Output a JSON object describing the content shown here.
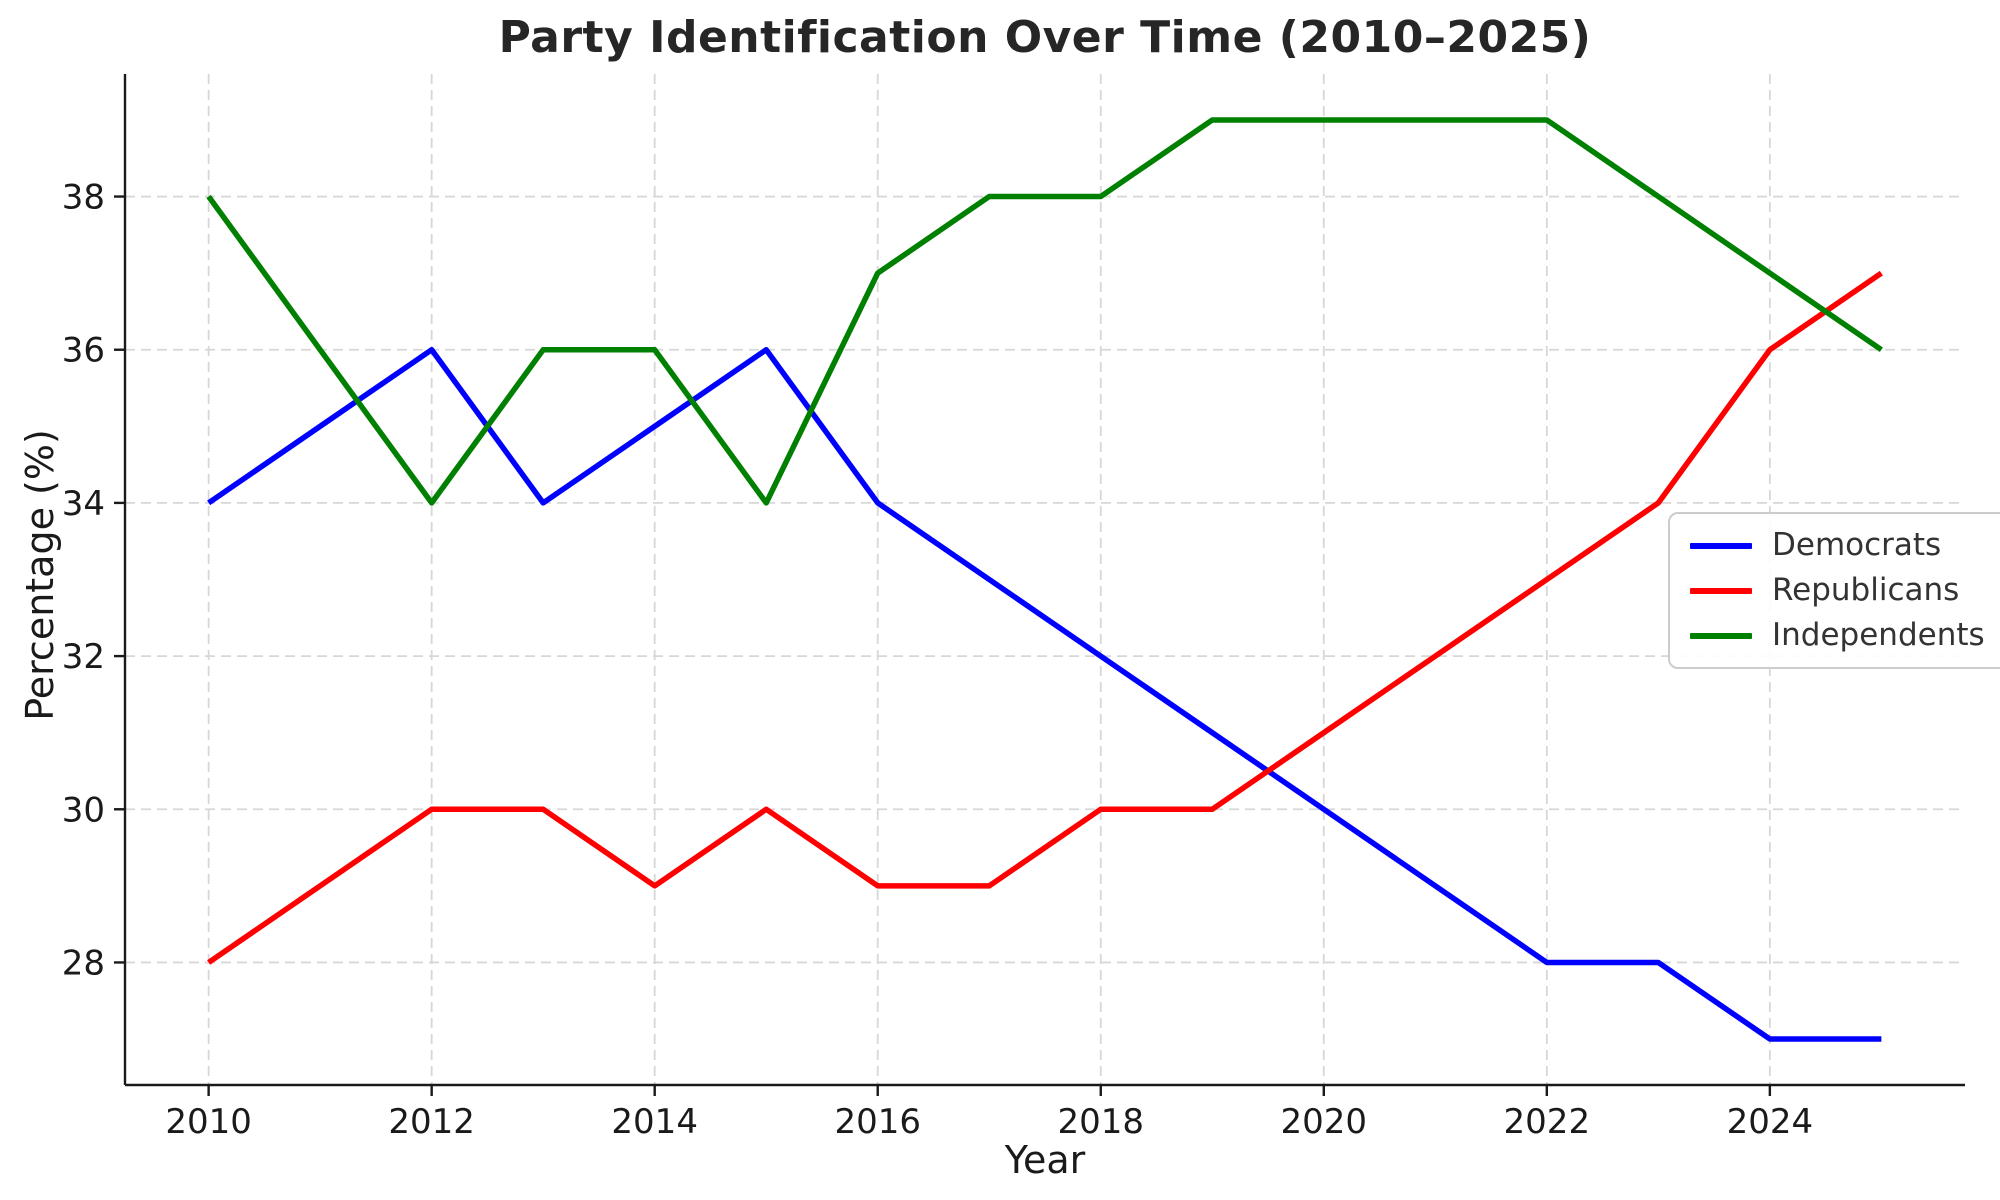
{
  "chart_data": {
    "type": "line",
    "title": "Party Identification Over Time (2010–2025)",
    "xlabel": "Year",
    "ylabel": "Percentage (%)",
    "x": [
      2010,
      2011,
      2012,
      2013,
      2014,
      2015,
      2016,
      2017,
      2018,
      2019,
      2020,
      2021,
      2022,
      2023,
      2024,
      2025
    ],
    "series": [
      {
        "name": "Democrats",
        "color": "#0000ff",
        "values": [
          34,
          35,
          36,
          34,
          35,
          36,
          34,
          33,
          32,
          31,
          30,
          29,
          28,
          28,
          27,
          27
        ]
      },
      {
        "name": "Republicans",
        "color": "#ff0000",
        "values": [
          28,
          29,
          30,
          30,
          29,
          30,
          29,
          29,
          30,
          30,
          31,
          32,
          33,
          34,
          36,
          37
        ]
      },
      {
        "name": "Independents",
        "color": "#008000",
        "values": [
          38,
          36,
          34,
          36,
          36,
          34,
          37,
          38,
          38,
          39,
          39,
          39,
          39,
          38,
          37,
          36
        ]
      }
    ],
    "xlim": [
      2009.25,
      2025.75
    ],
    "ylim": [
      26.4,
      39.6
    ],
    "xticks": [
      2010,
      2012,
      2014,
      2016,
      2018,
      2020,
      2022,
      2024
    ],
    "yticks": [
      28,
      30,
      32,
      34,
      36,
      38
    ],
    "grid": true,
    "grid_style": "dashed",
    "legend_position": "center right"
  },
  "colors": {
    "grid": "#d7d7d7",
    "spine": "#1a1a1a",
    "tick_text": "#1a1a1a"
  }
}
